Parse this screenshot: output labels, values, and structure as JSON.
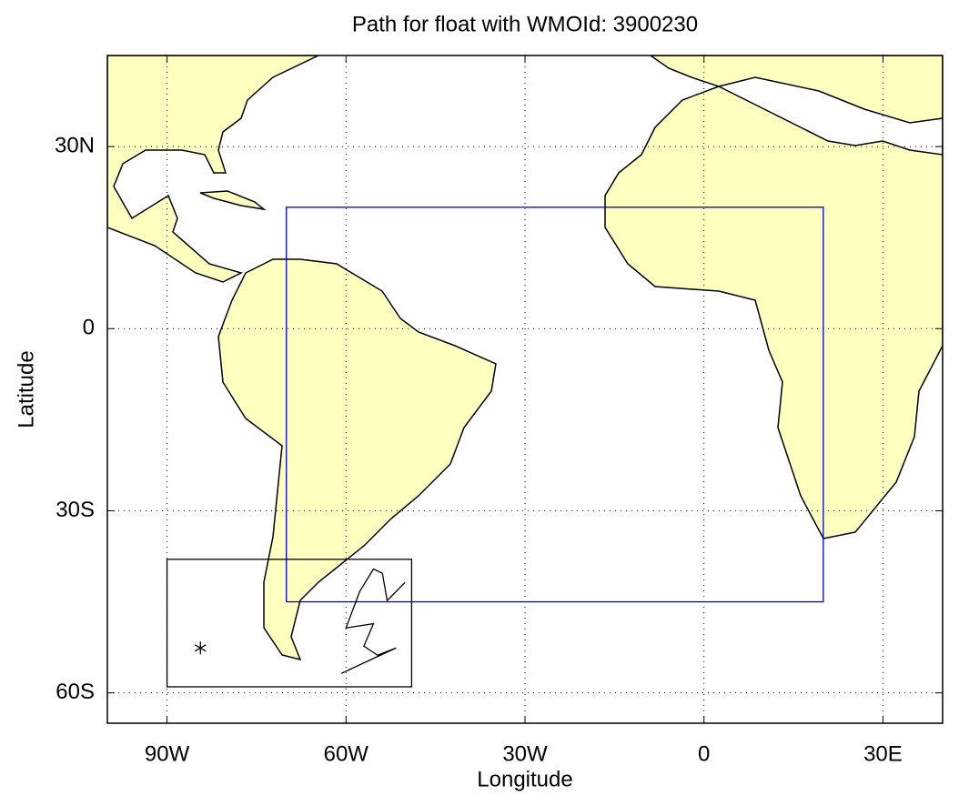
{
  "chart_data": {
    "type": "map",
    "title": "Path for float with WMOId: 3900230",
    "xlabel": "Longitude",
    "ylabel": "Latitude",
    "xlim": [
      -100,
      40
    ],
    "ylim": [
      -65,
      45
    ],
    "xticks": [
      {
        "value": -90,
        "label": "90W"
      },
      {
        "value": -60,
        "label": "60W"
      },
      {
        "value": -30,
        "label": "30W"
      },
      0,
      {
        "value": 30,
        "label": "30E"
      }
    ],
    "yticks": [
      {
        "value": -60,
        "label": "60S"
      },
      {
        "value": -30,
        "label": "30S"
      },
      0,
      {
        "value": 30,
        "label": "30N"
      }
    ],
    "grid": true,
    "boxes": [
      {
        "lon": [
          -70,
          20
        ],
        "lat": [
          -45,
          20
        ],
        "color": "#0000cc"
      },
      {
        "lon": [
          -90,
          -49
        ],
        "lat": [
          -59,
          -38
        ],
        "color": "#000000"
      }
    ],
    "series": [
      {
        "x": [
          -50.1,
          -53.1,
          -53.9,
          -55.4,
          -57.7,
          -60.0,
          -55.4,
          -57.0,
          -54.7,
          -51.6,
          -60.8
        ],
        "values": [
          -41.8,
          -44.8,
          -40.3,
          -39.6,
          -43.3,
          -49.3,
          -48.6,
          -52.3,
          -53.8,
          -52.6,
          -56.8
        ],
        "color": "#000000"
      }
    ],
    "marker": {
      "lon": -84.4,
      "lat": -52.6
    }
  }
}
